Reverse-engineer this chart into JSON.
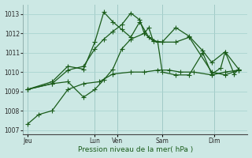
{
  "bg_color": "#cce8e4",
  "grid_color": "#aad4d0",
  "line_color": "#1a5c1a",
  "xlabel": "Pression niveau de la mer( hPa )",
  "ylim": [
    1006.8,
    1013.5
  ],
  "yticks": [
    1007,
    1008,
    1009,
    1010,
    1011,
    1012,
    1013
  ],
  "xlim": [
    0,
    100
  ],
  "day_ticks": [
    2,
    32,
    42,
    62,
    85
  ],
  "day_labels": [
    "Jeu",
    "Lun",
    "Ven",
    "Sam",
    "Dim"
  ],
  "series1_x": [
    2,
    7,
    13,
    20,
    27,
    34,
    40,
    48,
    54,
    60,
    65,
    70,
    76,
    84,
    90,
    96
  ],
  "series1_y": [
    1007.3,
    1007.8,
    1008.0,
    1009.1,
    1009.4,
    1009.5,
    1009.9,
    1010.0,
    1010.0,
    1010.1,
    1010.1,
    1010.0,
    1010.0,
    1009.85,
    1010.0,
    1010.1
  ],
  "series2_x": [
    2,
    13,
    20,
    27,
    32,
    36,
    40,
    44,
    48,
    54,
    58,
    62,
    68,
    74,
    84,
    90,
    96
  ],
  "series2_y": [
    1009.1,
    1009.4,
    1009.5,
    1008.7,
    1009.1,
    1009.6,
    1010.15,
    1011.2,
    1011.7,
    1012.0,
    1011.6,
    1011.55,
    1011.55,
    1011.8,
    1010.0,
    1009.85,
    1010.1
  ],
  "series3_x": [
    2,
    13,
    20,
    27,
    32,
    36,
    40,
    44,
    48,
    52,
    54,
    56,
    58,
    62,
    68,
    74,
    80,
    84,
    90,
    96
  ],
  "series3_y": [
    1009.1,
    1009.4,
    1010.1,
    1010.3,
    1011.2,
    1011.7,
    1012.1,
    1012.45,
    1013.05,
    1012.7,
    1012.0,
    1012.3,
    1011.6,
    1011.55,
    1012.3,
    1011.85,
    1011.1,
    1010.5,
    1011.05,
    1010.15
  ],
  "series4_x": [
    2,
    13,
    20,
    27,
    32,
    36,
    40,
    44,
    48,
    52,
    56,
    60,
    62,
    68,
    74,
    80,
    84,
    88,
    90,
    94,
    96
  ],
  "series4_y": [
    1009.1,
    1009.5,
    1010.3,
    1010.15,
    1011.55,
    1013.1,
    1012.6,
    1012.2,
    1011.8,
    1012.6,
    1011.8,
    1011.55,
    1010.0,
    1009.85,
    1009.85,
    1011.0,
    1009.9,
    1010.2,
    1011.05,
    1009.9,
    1010.15
  ]
}
